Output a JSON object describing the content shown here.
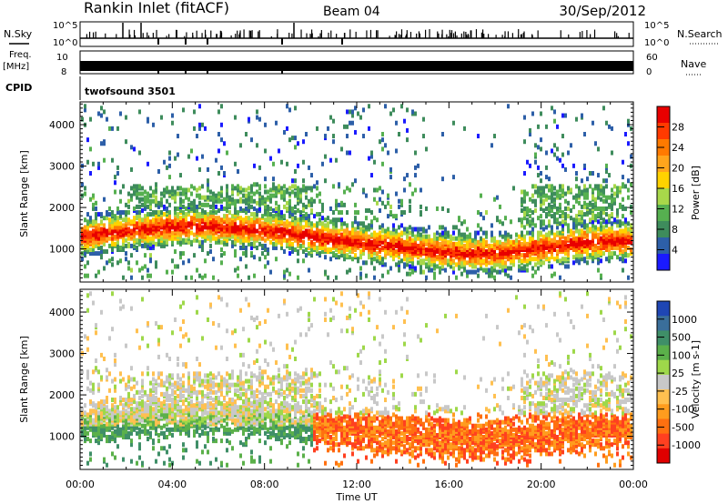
{
  "header": {
    "station": "Rankin Inlet (fitACF)",
    "beam": "Beam 04",
    "date": "30/Sep/2012"
  },
  "panels": {
    "nsky": {
      "label": "N.Sky",
      "right_label": "N.Search",
      "tick_top": "10^5",
      "tick_bottom": "10^0"
    },
    "freq": {
      "label": "Freq.",
      "unit": "[MHz]",
      "left_ticks": [
        "10",
        "8"
      ],
      "right_label": "Nave",
      "right_ticks": [
        "60",
        "0"
      ]
    },
    "cpid": {
      "label": "CPID",
      "program": "twofsound 3501"
    }
  },
  "colorbars": {
    "power": {
      "label": "Power [dB]",
      "ticks": [
        "28",
        "24",
        "20",
        "16",
        "12",
        "8",
        "4"
      ],
      "colors": [
        "#e80000",
        "#ff3a00",
        "#ff7a00",
        "#ffa51c",
        "#ffd200",
        "#a8d84a",
        "#56b050",
        "#3e8c5c",
        "#2d5fa8",
        "#1a1aff"
      ]
    },
    "velocity": {
      "label": "Velocity [m s-1]",
      "ticks": [
        "1000",
        "500",
        "100",
        "25",
        "-25",
        "-100",
        "-500",
        "-1000"
      ],
      "colors": [
        "#1f46b4",
        "#3a6e9a",
        "#3f8f68",
        "#5bb04a",
        "#9ed84a",
        "#c8c8c8",
        "#ffc050",
        "#ff9c1e",
        "#ff7010",
        "#ff4020",
        "#e00000"
      ]
    }
  },
  "chart_data": [
    {
      "type": "heatmap",
      "name": "power",
      "ylabel": "Slant Range [km]",
      "yticks": [
        "1000",
        "2000",
        "3000",
        "4000"
      ],
      "ylim": [
        200,
        4550
      ],
      "xlim": [
        0,
        24
      ],
      "xticks": [
        "00:00",
        "04:00",
        "08:00",
        "12:00",
        "16:00",
        "20:00",
        "00:00"
      ],
      "colorbar": "Power [dB]",
      "scale": [
        0,
        32
      ]
    },
    {
      "type": "heatmap",
      "name": "velocity",
      "ylabel": "Slant Range [km]",
      "yticks": [
        "1000",
        "2000",
        "3000",
        "4000"
      ],
      "ylim": [
        200,
        4550
      ],
      "xlim": [
        0,
        24
      ],
      "xticks": [
        "00:00",
        "04:00",
        "08:00",
        "12:00",
        "16:00",
        "20:00",
        "00:00"
      ],
      "xlabel": "Time UT",
      "colorbar": "Velocity [m s-1]",
      "scale": [
        -1000,
        1000
      ]
    }
  ]
}
